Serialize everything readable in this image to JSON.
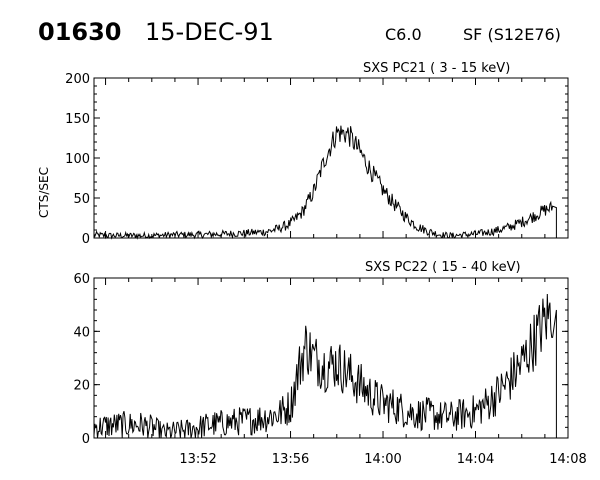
{
  "header": {
    "event_id": "01630",
    "date": "15-DEC-91",
    "flare_class": "C6.0",
    "location": "SF (S12E76)"
  },
  "chart_data": [
    {
      "type": "line",
      "title": "SXS PC21 ( 3 - 15 keV)",
      "xlabel": "",
      "ylabel": "CTS/SEC",
      "xlim": [
        "13:47:30",
        "14:08:00"
      ],
      "ylim": [
        0,
        200
      ],
      "yticks": [
        0,
        50,
        100,
        150,
        200
      ],
      "ytick_labels": [
        "0",
        "50",
        "100",
        "150",
        "200"
      ],
      "xtick_labels": [],
      "grid": false,
      "series": [
        {
          "x": [
            "13:47:30",
            "13:48:00",
            "13:49:00",
            "13:50:00",
            "13:51:00",
            "13:52:00",
            "13:53:00",
            "13:54:00",
            "13:55:00",
            "13:55:30",
            "13:56:00",
            "13:56:30",
            "13:57:00",
            "13:57:30",
            "13:58:00",
            "13:58:30",
            "13:59:00",
            "13:59:30",
            "14:00:00",
            "14:00:30",
            "14:01:00",
            "14:01:30",
            "14:02:00",
            "14:02:30",
            "14:03:00",
            "14:03:30",
            "14:04:00",
            "14:04:30",
            "14:05:00",
            "14:05:30",
            "14:06:00",
            "14:06:30",
            "14:07:00",
            "14:07:20",
            "14:07:30"
          ],
          "values": [
            4,
            3,
            3,
            3,
            4,
            4,
            5,
            6,
            8,
            12,
            18,
            32,
            58,
            100,
            132,
            130,
            108,
            83,
            60,
            42,
            26,
            14,
            8,
            4,
            3,
            4,
            5,
            7,
            10,
            14,
            20,
            27,
            35,
            38,
            0
          ]
        }
      ]
    },
    {
      "type": "line",
      "title": "SXS PC22 ( 15 - 40 keV)",
      "xlabel": "",
      "ylabel": "",
      "xlim": [
        "13:47:30",
        "14:08:00"
      ],
      "ylim": [
        0,
        60
      ],
      "yticks": [
        0,
        20,
        40,
        60
      ],
      "ytick_labels": [
        "0",
        "20",
        "40",
        "60"
      ],
      "xtick_labels": [
        "13:52",
        "13:56",
        "14:00",
        "14:04",
        "14:08"
      ],
      "grid": false,
      "series": [
        {
          "x": [
            "13:47:30",
            "13:48:30",
            "13:49:30",
            "13:50:00",
            "13:50:30",
            "13:51:30",
            "13:52:30",
            "13:53:30",
            "13:54:30",
            "13:55:00",
            "13:55:30",
            "13:56:00",
            "13:56:20",
            "13:56:40",
            "13:57:00",
            "13:57:30",
            "13:58:00",
            "13:58:30",
            "13:59:00",
            "13:59:30",
            "14:00:00",
            "14:00:30",
            "14:01:00",
            "14:01:30",
            "14:02:00",
            "14:02:30",
            "14:03:00",
            "14:03:30",
            "14:04:00",
            "14:04:30",
            "14:05:00",
            "14:05:30",
            "14:06:00",
            "14:06:30",
            "14:07:00",
            "14:07:20",
            "14:07:30"
          ],
          "values": [
            4,
            5,
            5,
            4,
            2,
            3,
            5,
            6,
            7,
            8,
            9,
            12,
            25,
            35,
            30,
            27,
            28,
            24,
            20,
            16,
            13,
            12,
            10,
            9,
            9,
            8,
            8,
            9,
            10,
            13,
            17,
            22,
            28,
            36,
            44,
            48,
            0
          ]
        }
      ]
    }
  ]
}
